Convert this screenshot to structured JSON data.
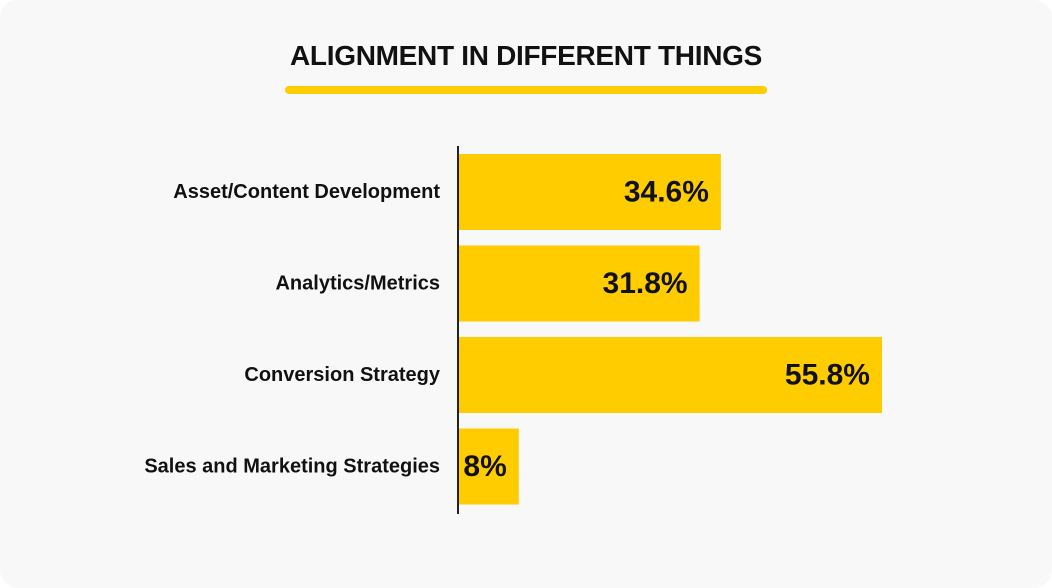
{
  "chart_data": {
    "type": "bar",
    "orientation": "horizontal",
    "title": "ALIGNMENT IN DIFFERENT THINGS",
    "categories": [
      "Asset/Content Development",
      "Analytics/Metrics",
      "Conversion Strategy",
      "Sales and Marketing Strategies"
    ],
    "values": [
      34.6,
      31.8,
      55.8,
      8
    ],
    "value_labels": [
      "34.6%",
      "31.8%",
      "55.8%",
      "8%"
    ],
    "xlim": [
      0,
      55.8
    ],
    "grid": false,
    "legend": "none",
    "bar_color": "#ffcc00"
  },
  "colors": {
    "accent": "#ffcc00",
    "text": "#111111",
    "axis": "#222222",
    "background": "#f8f8f8"
  }
}
